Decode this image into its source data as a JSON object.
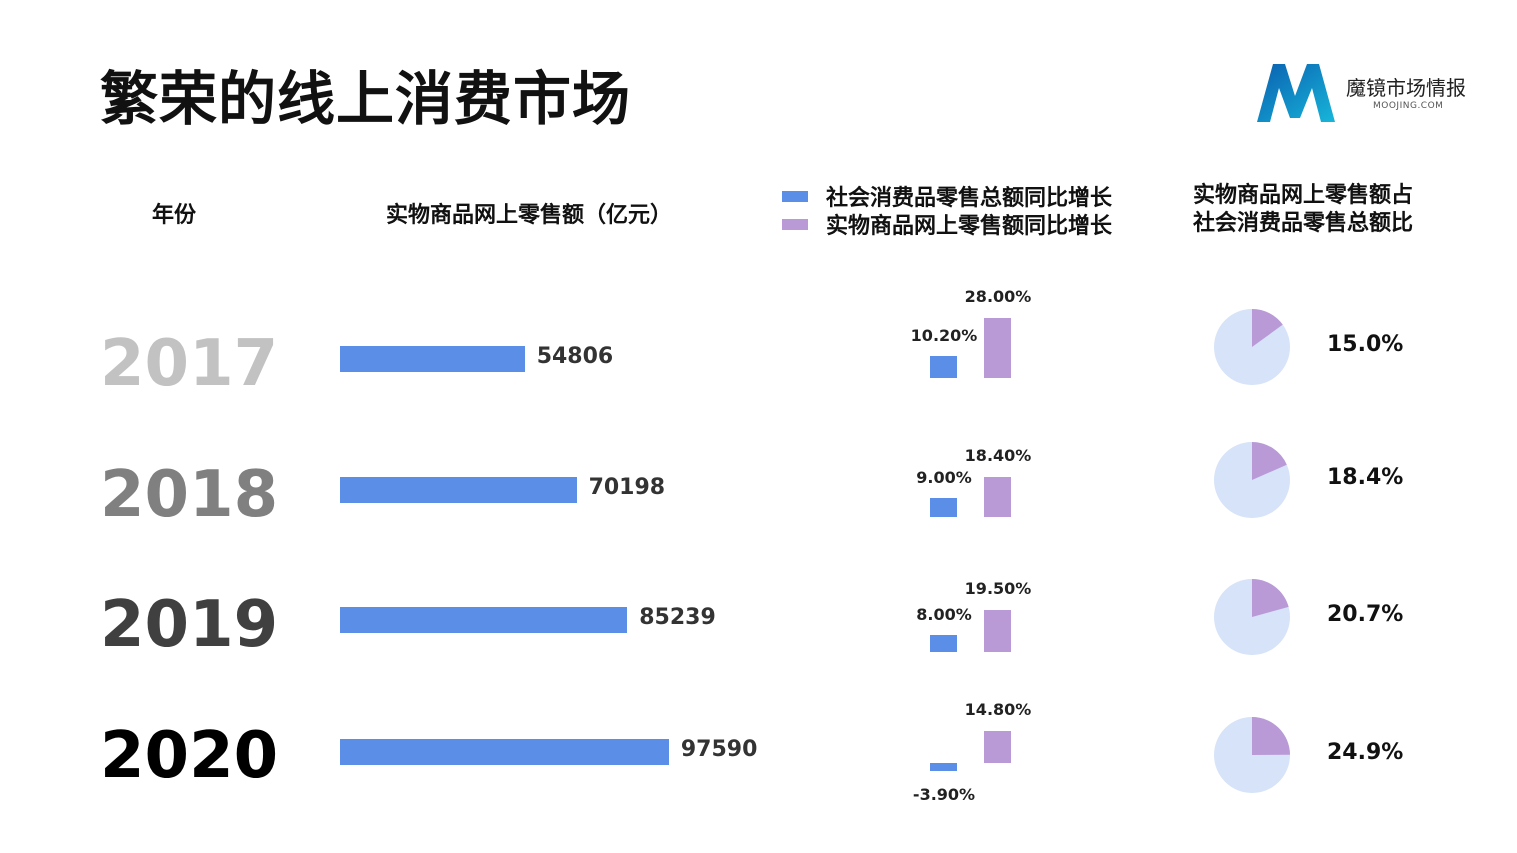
{
  "page": {
    "title": "繁荣的线上消费市场"
  },
  "logo": {
    "name_cn": "魔镜市场情报",
    "name_en": "MOOJING.COM",
    "colors": [
      "#0a5fb0",
      "#17b6d9"
    ]
  },
  "headers": {
    "year": "年份",
    "online_sales": "实物商品网上零售额（亿元）",
    "share_line1": "实物商品网上零售额占",
    "share_line2": "社会消费品零售总额比"
  },
  "legend": [
    {
      "label": "社会消费品零售总额同比增长",
      "color": "#5b8ee6"
    },
    {
      "label": "实物商品网上零售额同比增长",
      "color": "#b99ad6"
    }
  ],
  "colors": {
    "sales_bar": "#5b8ee6",
    "growth_social": "#5b8ee6",
    "growth_online": "#b99ad6",
    "pie_base": "#d6e3f8",
    "pie_slice": "#b99ad6",
    "year_colors": [
      "#c2c2c2",
      "#808080",
      "#404040",
      "#000000"
    ]
  },
  "chart_data": [
    {
      "type": "bar",
      "title": "实物商品网上零售额（亿元）",
      "categories": [
        "2017",
        "2018",
        "2019",
        "2020"
      ],
      "values": [
        54806,
        70198,
        85239,
        97590
      ],
      "labels": [
        "54806",
        "70198",
        "85239",
        "97590"
      ],
      "orientation": "horizontal"
    },
    {
      "type": "bar",
      "categories": [
        "2017",
        "2018",
        "2019",
        "2020"
      ],
      "series": [
        {
          "name": "社会消费品零售总额同比增长",
          "values": [
            10.2,
            9.0,
            8.0,
            -3.9
          ],
          "labels": [
            "10.20%",
            "9.00%",
            "8.00%",
            "-3.90%"
          ]
        },
        {
          "name": "实物商品网上零售额同比增长",
          "values": [
            28.0,
            18.4,
            19.5,
            14.8
          ],
          "labels": [
            "28.00%",
            "18.40%",
            "19.50%",
            "14.80%"
          ]
        }
      ]
    },
    {
      "type": "pie",
      "title": "实物商品网上零售额占社会消费品零售总额比",
      "categories": [
        "2017",
        "2018",
        "2019",
        "2020"
      ],
      "values": [
        15.0,
        18.4,
        20.7,
        24.9
      ],
      "labels": [
        "15.0%",
        "18.4%",
        "20.7%",
        "24.9%"
      ]
    }
  ]
}
